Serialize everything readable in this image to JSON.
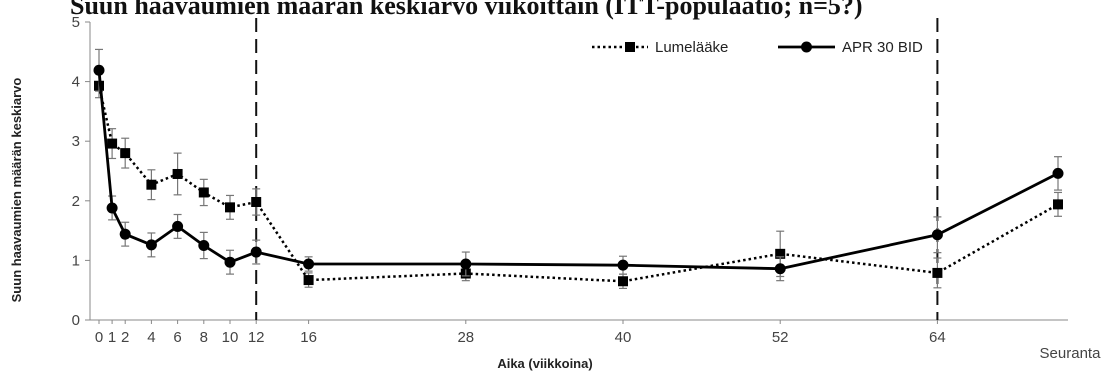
{
  "chart_data": {
    "type": "line",
    "title": "Suun haavaumien määrän keskiarvo viikoittain (ITT-populaatio; n=5?)",
    "xlabel": "Aika (viikkoina)",
    "ylabel": "Suun haavaumien määrän keskiarvo",
    "ylim": [
      0,
      5
    ],
    "yticks": [
      "0",
      "1",
      "2",
      "3",
      "4",
      "5"
    ],
    "xticks": [
      "0",
      "1",
      "2",
      "4",
      "6",
      "8",
      "10",
      "12",
      "16",
      "28",
      "40",
      "52",
      "64"
    ],
    "followup_label": "Seuranta",
    "vlines": [
      12,
      64
    ],
    "grid": false,
    "legend_position": "top-right",
    "series": [
      {
        "name": "Lumelääke",
        "style": "dotted",
        "marker": "square",
        "color": "#000000",
        "x": [
          0,
          1,
          2,
          4,
          6,
          8,
          10,
          12,
          16,
          28,
          40,
          52,
          64,
          "Seuranta"
        ],
        "values": [
          3.93,
          2.96,
          2.8,
          2.27,
          2.45,
          2.14,
          1.89,
          1.98,
          0.67,
          0.78,
          0.65,
          1.11,
          0.79,
          1.94
        ],
        "errors": [
          0.2,
          0.25,
          0.25,
          0.25,
          0.35,
          0.22,
          0.2,
          0.22,
          0.12,
          0.12,
          0.12,
          0.38,
          0.25,
          0.2
        ]
      },
      {
        "name": "APR 30 BID",
        "style": "solid",
        "marker": "circle",
        "color": "#000000",
        "x": [
          0,
          1,
          2,
          4,
          6,
          8,
          10,
          12,
          16,
          28,
          40,
          52,
          64,
          "Seuranta"
        ],
        "values": [
          4.19,
          1.88,
          1.44,
          1.26,
          1.57,
          1.25,
          0.97,
          1.14,
          0.94,
          0.94,
          0.92,
          0.86,
          1.43,
          2.46
        ],
        "errors": [
          0.35,
          0.2,
          0.2,
          0.2,
          0.2,
          0.22,
          0.2,
          0.2,
          0.12,
          0.2,
          0.15,
          0.2,
          0.3,
          0.28
        ]
      }
    ]
  }
}
